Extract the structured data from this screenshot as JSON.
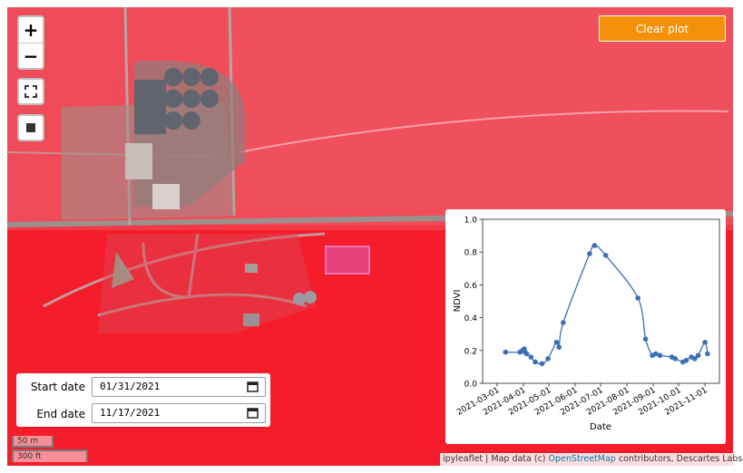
{
  "map": {
    "zoom_in": "+",
    "zoom_out": "−",
    "clear_button": "Clear plot",
    "start_label": "Start date",
    "start_value": "01/31/2021",
    "end_label": "End date",
    "end_value": "11/17/2021",
    "scale_metric": "50 m",
    "scale_imperial": "300 ft",
    "attribution": {
      "prefix": "ipyleaflet | Map data (c) ",
      "link": "OpenStreetMap",
      "suffix": " contributors, Descartes Labs"
    }
  },
  "chart_data": {
    "type": "line",
    "x_label": "Date",
    "y_label": "NDVI",
    "x": [
      "2021-03-11",
      "2021-03-28",
      "2021-03-31",
      "2021-04-02",
      "2021-04-03",
      "2021-04-05",
      "2021-04-10",
      "2021-04-15",
      "2021-04-23",
      "2021-04-30",
      "2021-05-10",
      "2021-05-13",
      "2021-05-18",
      "2021-06-18",
      "2021-06-24",
      "2021-07-07",
      "2021-08-14",
      "2021-08-23",
      "2021-08-31",
      "2021-09-04",
      "2021-09-09",
      "2021-09-23",
      "2021-09-27",
      "2021-10-06",
      "2021-10-10",
      "2021-10-16",
      "2021-10-20",
      "2021-10-24",
      "2021-11-01",
      "2021-11-04"
    ],
    "series": [
      {
        "name": "NDVI",
        "color": "#3b6fb6",
        "values": [
          0.19,
          0.19,
          0.2,
          0.21,
          0.19,
          0.18,
          0.16,
          0.13,
          0.12,
          0.15,
          0.25,
          0.22,
          0.37,
          0.79,
          0.84,
          0.78,
          0.52,
          0.27,
          0.17,
          0.18,
          0.17,
          0.16,
          0.15,
          0.13,
          0.14,
          0.16,
          0.15,
          0.17,
          0.25,
          0.18
        ]
      }
    ],
    "xlim": [
      "2021-02-12",
      "2021-11-18"
    ],
    "xticks": [
      "2021-03-01",
      "2021-04-01",
      "2021-05-01",
      "2021-06-01",
      "2021-07-01",
      "2021-08-01",
      "2021-09-01",
      "2021-10-01",
      "2021-11-01"
    ],
    "ylim": [
      0,
      1
    ],
    "yticks": [
      {
        "value": 0,
        "label": "0.0"
      },
      0.2,
      0.4,
      0.6,
      0.8,
      {
        "value": 1,
        "label": "1.0"
      }
    ]
  }
}
